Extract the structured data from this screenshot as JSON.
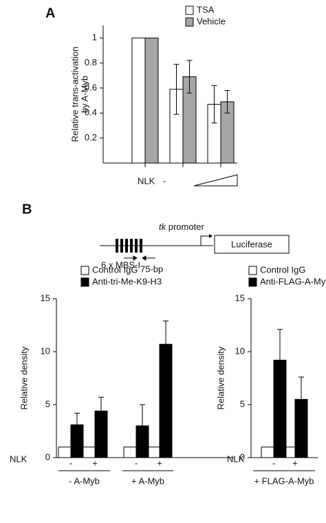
{
  "panels": [
    "A",
    "B"
  ],
  "diagram": {
    "promoter_italic": "tk",
    "promoter": "promoter",
    "reporter": "Luciferase",
    "sites": "6 x MBS-I",
    "spacer": "75-bp"
  },
  "chart_data": [
    {
      "type": "bar",
      "ylabel": [
        "Relative trans-activation",
        "by A-Myb"
      ],
      "xlabel": "NLK",
      "categories": [
        "-",
        null,
        null
      ],
      "ramp": true,
      "series": [
        {
          "name": "TSA",
          "color": "#ffffff",
          "values": [
            1.0,
            0.59,
            0.47
          ],
          "errors": [
            0,
            0.2,
            0.15
          ]
        },
        {
          "name": "Vehicle",
          "color": "#a6a6a6",
          "values": [
            1.0,
            0.69,
            0.49
          ],
          "errors": [
            0,
            0.13,
            0.09
          ]
        }
      ],
      "error_bars": "both",
      "ylim": [
        0,
        1.1
      ],
      "yticks": [
        0.2,
        0.4,
        0.6,
        0.8,
        1.0
      ],
      "legend": "upper right"
    },
    {
      "type": "bar",
      "ylabel": [
        "Relative density"
      ],
      "xlabel": "NLK",
      "categories": [
        "-",
        "+",
        "-",
        "+"
      ],
      "group_labels": [
        "- A-Myb",
        "+ A-Myb"
      ],
      "series": [
        {
          "name": "Control IgG",
          "color": "#ffffff",
          "values": [
            1,
            1,
            1,
            1
          ]
        },
        {
          "name": "Anti-tri-Me-K9-H3",
          "color": "#000000",
          "values": [
            3.1,
            4.4,
            3.0,
            10.7
          ],
          "errors": [
            1.1,
            1.3,
            2.0,
            2.2
          ]
        }
      ],
      "error_bars": "up",
      "ylim": [
        0,
        15
      ],
      "yticks": [
        0,
        5,
        10,
        15
      ],
      "legend": "above"
    },
    {
      "type": "bar",
      "ylabel": [
        "Relative density"
      ],
      "xlabel": "NLK",
      "categories": [
        "-",
        "+"
      ],
      "group_labels": [
        "+ FLAG-A-Myb"
      ],
      "series": [
        {
          "name": "Control IgG",
          "color": "#ffffff",
          "values": [
            1,
            1
          ]
        },
        {
          "name": "Anti-FLAG-A-Myb",
          "color": "#000000",
          "values": [
            9.2,
            5.5
          ],
          "errors": [
            2.9,
            2.1
          ]
        }
      ],
      "error_bars": "up",
      "ylim": [
        0,
        15
      ],
      "yticks": [
        0,
        5,
        10,
        15
      ],
      "legend": "above"
    }
  ]
}
